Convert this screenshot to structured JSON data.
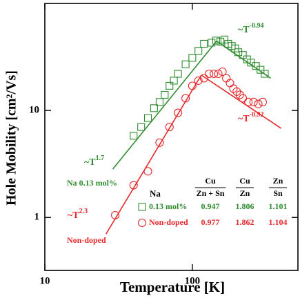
{
  "chart_data": {
    "type": "scatter",
    "x_label": "Temperature [K]",
    "y_label": "Hole Mobility [cm²/Vs]",
    "log_x": true,
    "log_y": true,
    "xlim": [
      10,
      520
    ],
    "ylim": [
      0.32,
      100
    ],
    "xticks": [
      10,
      100
    ],
    "yticks": [
      1,
      10
    ],
    "series": [
      {
        "name": "0.13 mol%",
        "color": "#2e8b2e",
        "marker": "square",
        "x": [
          40,
          45,
          50,
          55,
          60,
          65,
          70,
          75,
          80,
          90,
          100,
          110,
          120,
          135,
          145,
          155,
          165,
          175,
          185,
          195,
          205,
          220,
          235,
          250,
          270,
          290,
          310
        ],
        "values": [
          5.8,
          7,
          8.5,
          10.5,
          12,
          14,
          17,
          19,
          22,
          27,
          31,
          36,
          42,
          43,
          45,
          44,
          46,
          42,
          40,
          38,
          35,
          33,
          30,
          28,
          26,
          24,
          22
        ]
      },
      {
        "name": "Non-doped",
        "color": "#e8262a",
        "marker": "circle",
        "x": [
          30,
          40,
          50,
          60,
          70,
          80,
          90,
          100,
          110,
          120,
          130,
          140,
          150,
          160,
          170,
          180,
          190,
          200,
          210,
          220,
          240,
          260,
          280,
          300
        ],
        "values": [
          1.05,
          2.0,
          2.7,
          5.0,
          7,
          9.5,
          13,
          17,
          19,
          20,
          22,
          22,
          22,
          23,
          20,
          18,
          16,
          15,
          14,
          13,
          12,
          12,
          11.5,
          12
        ]
      }
    ],
    "fits": [
      {
        "color": "#2e8b2e",
        "x": [
          28.9,
          146
        ],
        "values": [
          2.83,
          44.5
        ]
      },
      {
        "color": "#2e8b2e",
        "x": [
          146,
          340
        ],
        "values": [
          44.5,
          20
        ]
      },
      {
        "color": "#e8262a",
        "x": [
          26,
          115
        ],
        "values": [
          0.7,
          21.4
        ]
      },
      {
        "color": "#e8262a",
        "x": [
          115,
          400
        ],
        "values": [
          21.4,
          6.8
        ]
      }
    ],
    "annotations": [
      {
        "text": "~T",
        "exponent": "1.7",
        "color": "#2e8b2e"
      },
      {
        "text": "~T",
        "exponent": "-0.94",
        "color": "#2e8b2e"
      },
      {
        "text": "~T",
        "exponent": "2.3",
        "color": "#e8262a"
      },
      {
        "text": "~T",
        "exponent": "-0.92",
        "color": "#e8262a"
      },
      {
        "text": "Na 0.13 mol%",
        "color": "#2e8b2e"
      },
      {
        "text": "Non-doped",
        "color": "#e8262a"
      }
    ],
    "table": {
      "header": [
        "Na",
        {
          "num": "Cu",
          "den": "Zn + Sn"
        },
        {
          "num": "Cu",
          "den": "Zn"
        },
        {
          "num": "Zn",
          "den": "Sn"
        }
      ],
      "rows": [
        [
          0.947,
          1.806,
          1.101
        ],
        [
          0.977,
          1.862,
          1.104
        ]
      ]
    }
  }
}
